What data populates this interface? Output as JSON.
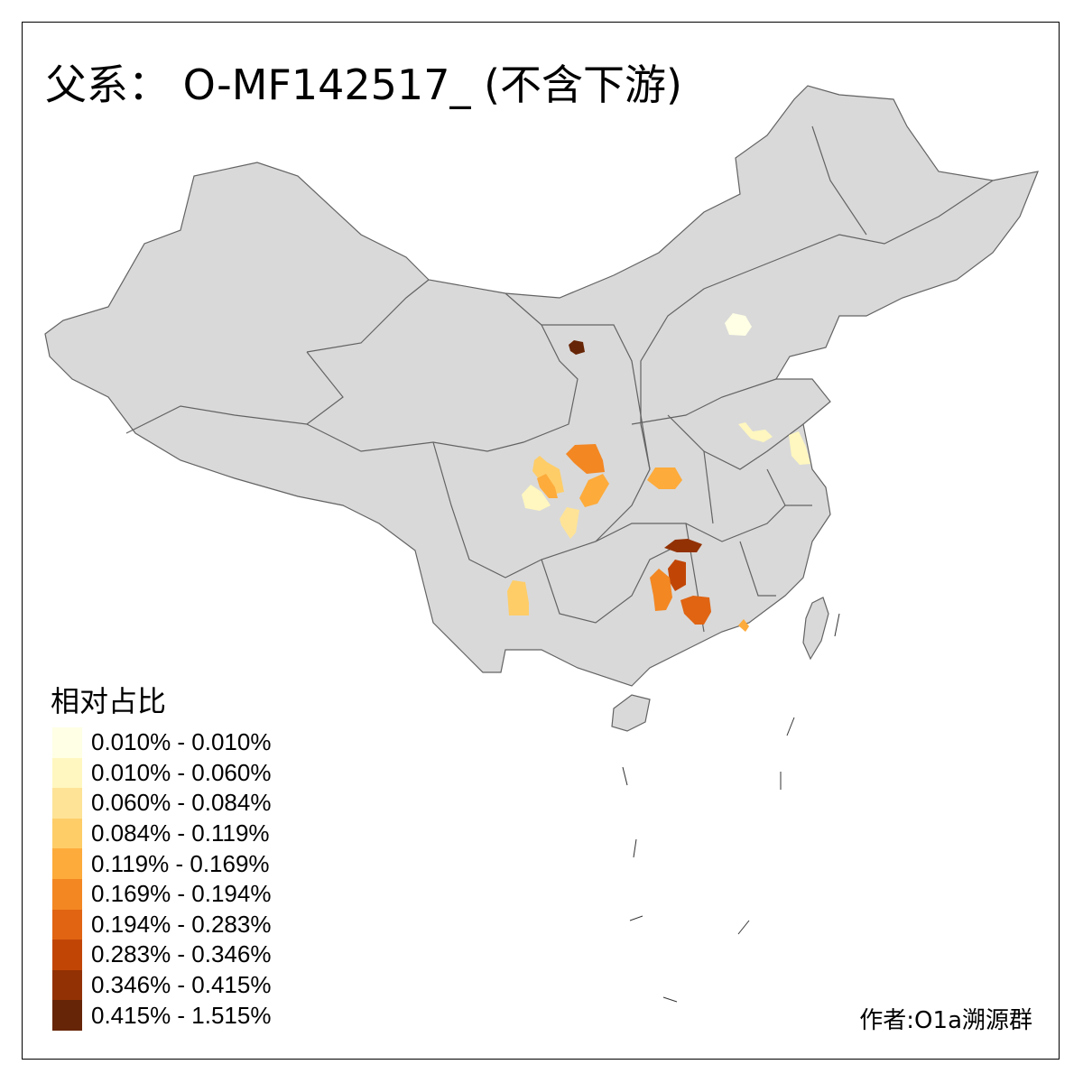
{
  "title": "父系： O-MF142517_ (不含下游)",
  "legend": {
    "title": "相对占比",
    "items": [
      {
        "label": "0.010% - 0.010%",
        "color": "#FFFFE5"
      },
      {
        "label": "0.010% - 0.060%",
        "color": "#FFF7BF"
      },
      {
        "label": "0.060% - 0.084%",
        "color": "#FEE397"
      },
      {
        "label": "0.084% - 0.119%",
        "color": "#FECD68"
      },
      {
        "label": "0.119% - 0.169%",
        "color": "#FDAB3B"
      },
      {
        "label": "0.169% - 0.194%",
        "color": "#F38722"
      },
      {
        "label": "0.194% - 0.283%",
        "color": "#E06412"
      },
      {
        "label": "0.283% - 0.346%",
        "color": "#C14606"
      },
      {
        "label": "0.346% - 0.415%",
        "color": "#923103"
      },
      {
        "label": "0.415% - 1.515%",
        "color": "#662506"
      }
    ]
  },
  "author": "作者:O1a溯源群",
  "colors": {
    "land": "#D9D9D9",
    "border": "#636363"
  }
}
